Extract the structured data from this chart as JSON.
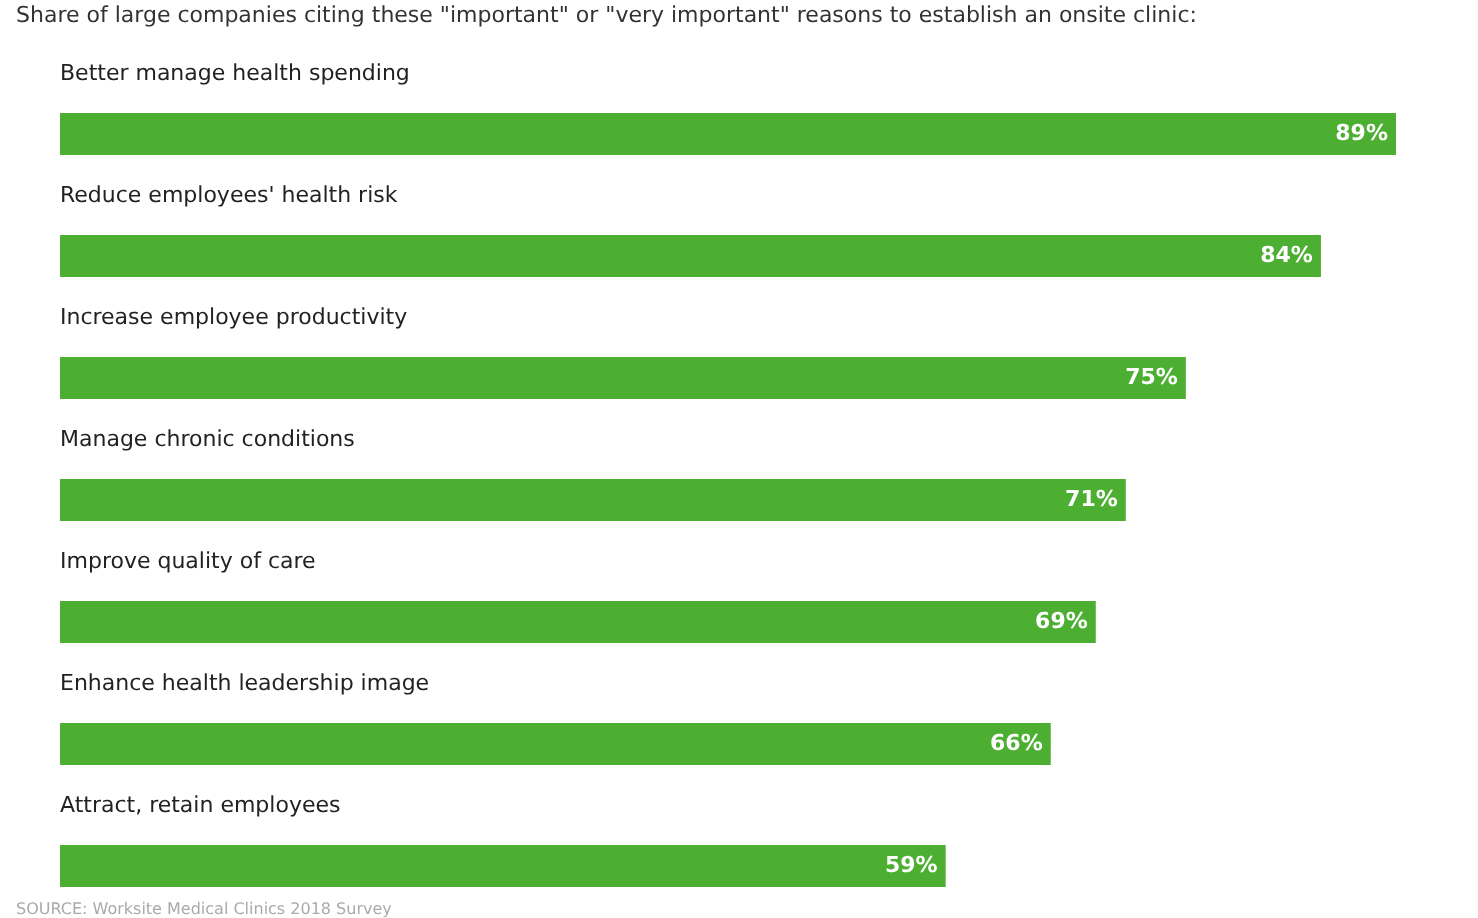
{
  "chart_data": {
    "type": "bar",
    "orientation": "horizontal",
    "title": "Share of large companies citing these \"important\" or \"very important\" reasons to establish an onsite clinic:",
    "categories": [
      "Better manage health spending",
      "Reduce employees' health risk",
      "Increase employee productivity",
      "Manage chronic conditions",
      "Improve quality of care",
      "Enhance health leadership image",
      "Attract, retain employees"
    ],
    "values": [
      89,
      84,
      75,
      71,
      69,
      66,
      59
    ],
    "value_labels": [
      "89%",
      "84%",
      "75%",
      "71%",
      "69%",
      "66%",
      "59%"
    ],
    "color": "#4caf32",
    "annotations": [
      "SOURCE: Worksite Medical Clinics 2018 Survey"
    ]
  }
}
